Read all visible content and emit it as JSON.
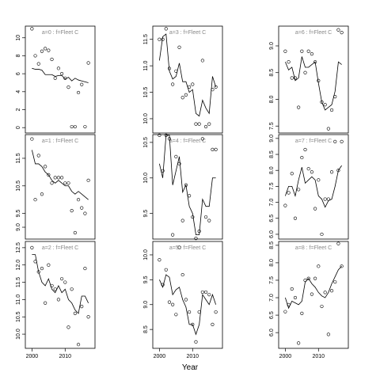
{
  "xlabel": "Year",
  "chart_data": [
    {
      "type": "scatter",
      "title": "a=0 : f=Fleet C",
      "x": [
        2000,
        2001,
        2002,
        2003,
        2004,
        2005,
        2006,
        2007,
        2008,
        2009,
        2010,
        2011,
        2012,
        2013,
        2014,
        2015,
        2016,
        2017
      ],
      "xlim": [
        1998,
        2019
      ],
      "ylim": [
        -0.6,
        11.3
      ],
      "yticks": [
        0,
        2,
        4,
        6,
        8,
        10
      ],
      "series": [
        {
          "style": "points",
          "values": [
            11.0,
            8.0,
            7.1,
            8.5,
            8.8,
            8.6,
            7.6,
            5.5,
            6.6,
            6.0,
            5.5,
            4.5,
            0.1,
            0.1,
            3.9,
            4.8,
            0.1,
            7.2
          ]
        },
        {
          "style": "line",
          "values": [
            6.6,
            6.5,
            6.5,
            6.4,
            5.9,
            5.9,
            5.9,
            5.7,
            5.8,
            5.8,
            5.4,
            5.6,
            5.2,
            5.5,
            5.3,
            5.2,
            5.1,
            5.0
          ]
        }
      ]
    },
    {
      "type": "scatter",
      "title": "a=1 : f=Fleet C",
      "x": [
        2000,
        2001,
        2002,
        2003,
        2004,
        2005,
        2006,
        2007,
        2008,
        2009,
        2010,
        2011,
        2012,
        2013,
        2014,
        2015,
        2016,
        2017
      ],
      "xlim": [
        1998,
        2019
      ],
      "ylim": [
        8.57,
        12.36
      ],
      "yticks": [
        {
          "value": 9,
          "label": "9.0"
        },
        9.5,
        10.5,
        11.5
      ],
      "series": [
        {
          "style": "points",
          "values": [
            12.2,
            10.0,
            11.6,
            10.2,
            11.2,
            10.9,
            10.6,
            10.8,
            10.8,
            10.8,
            10.6,
            10.6,
            9.6,
            8.8,
            10.0,
            9.7,
            9.5,
            10.7
          ]
        },
        {
          "style": "line",
          "values": [
            11.8,
            11.3,
            11.3,
            11.2,
            11.0,
            10.9,
            10.7,
            10.6,
            10.7,
            10.6,
            10.5,
            10.5,
            10.3,
            10.2,
            10.3,
            10.2,
            10.1,
            10.0
          ]
        }
      ]
    },
    {
      "type": "scatter",
      "title": "a=2 : f=Fleet C",
      "x": [
        2000,
        2001,
        2002,
        2003,
        2004,
        2005,
        2006,
        2007,
        2008,
        2009,
        2010,
        2011,
        2012,
        2013,
        2014,
        2015,
        2016,
        2017
      ],
      "xlim": [
        1998,
        2019
      ],
      "xticks": [
        2000,
        2010
      ],
      "ylim": [
        9.59,
        12.68
      ],
      "yticks": [
        {
          "value": 10,
          "label": "10.0"
        },
        10.5,
        {
          "value": 11,
          "label": "11.0"
        },
        11.5,
        {
          "value": 12,
          "label": "12.0"
        },
        12.5
      ],
      "series": [
        {
          "style": "points",
          "values": [
            12.5,
            12.1,
            11.8,
            11.9,
            10.9,
            12.0,
            11.4,
            11.3,
            11.0,
            11.6,
            11.5,
            10.2,
            11.3,
            10.6,
            9.7,
            10.8,
            11.9,
            10.5
          ]
        },
        {
          "style": "line",
          "values": [
            12.3,
            12.3,
            11.8,
            11.5,
            11.4,
            11.6,
            11.3,
            11.2,
            11.4,
            11.2,
            11.3,
            11.0,
            10.9,
            10.7,
            10.6,
            11.1,
            11.1,
            10.9
          ]
        }
      ]
    },
    {
      "type": "scatter",
      "title": "a=3 : f=Fleet C",
      "x": [
        2000,
        2001,
        2002,
        2003,
        2004,
        2005,
        2006,
        2007,
        2008,
        2009,
        2010,
        2011,
        2012,
        2013,
        2014,
        2015,
        2016,
        2017
      ],
      "xlim": [
        1998,
        2019
      ],
      "ylim": [
        9.73,
        11.75
      ],
      "yticks": [
        {
          "value": 10,
          "label": "10.0"
        },
        10.5,
        {
          "value": 11,
          "label": "11.0"
        },
        11.5
      ],
      "series": [
        {
          "style": "points",
          "values": [
            11.5,
            11.5,
            11.7,
            10.95,
            10.65,
            10.9,
            11.35,
            10.4,
            10.45,
            10.6,
            10.65,
            9.9,
            9.9,
            11.1,
            9.85,
            9.9,
            10.55,
            10.6
          ]
        },
        {
          "style": "line",
          "values": [
            11.1,
            11.55,
            11.6,
            10.9,
            10.75,
            10.8,
            11.05,
            10.7,
            10.7,
            10.5,
            10.55,
            10.1,
            10.05,
            10.35,
            10.2,
            10.1,
            10.8,
            10.6
          ]
        }
      ]
    },
    {
      "type": "scatter",
      "title": "a=4 : f=Fleet C",
      "x": [
        2000,
        2001,
        2002,
        2003,
        2004,
        2005,
        2006,
        2007,
        2008,
        2009,
        2010,
        2011,
        2012,
        2013,
        2014,
        2015,
        2016,
        2017
      ],
      "xlim": [
        1998,
        2019
      ],
      "ylim": [
        9.14,
        10.61
      ],
      "yticks": [
        9.5,
        {
          "value": 10,
          "label": "10.0"
        },
        10.5
      ],
      "series": [
        {
          "style": "points",
          "values": [
            10.6,
            10.1,
            10.6,
            10.55,
            9.2,
            10.3,
            10.2,
            9.4,
            9.9,
            9.75,
            9.45,
            9.15,
            9.25,
            10.55,
            9.45,
            9.4,
            10.4,
            10.4
          ]
        },
        {
          "style": "line",
          "values": [
            10.2,
            10.0,
            10.6,
            10.6,
            9.9,
            10.1,
            10.3,
            9.8,
            9.9,
            9.6,
            9.5,
            9.2,
            9.2,
            9.7,
            9.6,
            9.6,
            10.0,
            10.0
          ]
        }
      ]
    },
    {
      "type": "scatter",
      "title": "a=5 : f=Fleet C",
      "x": [
        2000,
        2001,
        2002,
        2003,
        2004,
        2005,
        2006,
        2007,
        2008,
        2009,
        2010,
        2011,
        2012,
        2013,
        2014,
        2015,
        2016,
        2017
      ],
      "xlim": [
        1998,
        2019
      ],
      "xticks": [
        2000,
        2010
      ],
      "ylim": [
        8.12,
        10.27
      ],
      "yticks": [
        8.5,
        {
          "value": 9,
          "label": "9.0"
        },
        9.5,
        {
          "value": 10,
          "label": "10.0"
        }
      ],
      "series": [
        {
          "style": "points",
          "values": [
            9.9,
            9.4,
            9.7,
            9.05,
            9.0,
            8.8,
            10.15,
            9.6,
            9.1,
            8.85,
            8.6,
            8.25,
            8.85,
            9.25,
            9.25,
            9.2,
            8.6,
            8.85
          ]
        },
        {
          "style": "line",
          "values": [
            9.5,
            9.35,
            9.6,
            9.55,
            9.2,
            9.3,
            9.35,
            9.1,
            8.95,
            8.6,
            8.6,
            8.4,
            8.6,
            9.2,
            9.1,
            9.0,
            9.2,
            9.0
          ]
        }
      ]
    },
    {
      "type": "scatter",
      "title": "a=6 : f=Fleet C",
      "x": [
        2000,
        2001,
        2002,
        2003,
        2004,
        2005,
        2006,
        2007,
        2008,
        2009,
        2010,
        2011,
        2012,
        2013,
        2014,
        2015,
        2016,
        2017
      ],
      "xlim": [
        1998,
        2019
      ],
      "ylim": [
        7.37,
        9.37
      ],
      "yticks": [
        7.5,
        {
          "value": 8,
          "label": "8.0"
        },
        8.5,
        {
          "value": 9,
          "label": "9.0"
        }
      ],
      "series": [
        {
          "style": "points",
          "values": [
            8.9,
            8.7,
            8.4,
            8.4,
            7.85,
            8.9,
            8.5,
            8.9,
            8.85,
            8.7,
            8.35,
            7.95,
            7.9,
            7.45,
            7.8,
            8.05,
            9.3,
            9.25
          ]
        },
        {
          "style": "line",
          "values": [
            8.7,
            8.55,
            8.6,
            8.35,
            8.4,
            8.8,
            8.6,
            8.6,
            8.65,
            8.7,
            8.3,
            7.95,
            7.8,
            7.85,
            7.9,
            8.15,
            8.7,
            8.65
          ]
        }
      ]
    },
    {
      "type": "scatter",
      "title": "a=7 : f=Fleet C",
      "x": [
        2000,
        2001,
        2002,
        2003,
        2004,
        2005,
        2006,
        2007,
        2008,
        2009,
        2010,
        2011,
        2012,
        2013,
        2014,
        2015,
        2016,
        2017
      ],
      "xlim": [
        1998,
        2019
      ],
      "ylim": [
        5.85,
        9.12
      ],
      "yticks": [
        {
          "value": 6,
          "label": "6.0"
        },
        6.5,
        {
          "value": 7,
          "label": "7.0"
        },
        7.5,
        {
          "value": 8,
          "label": "8.0"
        },
        8.5,
        {
          "value": 9,
          "label": "9.0"
        }
      ],
      "series": [
        {
          "style": "points",
          "values": [
            6.9,
            7.3,
            7.9,
            6.5,
            7.4,
            8.4,
            8.65,
            8.05,
            7.95,
            6.8,
            7.7,
            6.0,
            7.1,
            7.1,
            7.95,
            8.9,
            8.0,
            8.9
          ]
        },
        {
          "style": "line",
          "values": [
            7.2,
            7.5,
            7.5,
            7.2,
            7.7,
            8.1,
            7.6,
            7.7,
            7.8,
            7.7,
            7.2,
            7.1,
            6.85,
            7.05,
            7.1,
            7.5,
            8.0,
            8.15
          ]
        }
      ]
    },
    {
      "type": "scatter",
      "title": "a=8 : f=Fleet C",
      "x": [
        2000,
        2001,
        2002,
        2003,
        2004,
        2005,
        2006,
        2007,
        2008,
        2009,
        2010,
        2011,
        2012,
        2013,
        2014,
        2015,
        2016,
        2017
      ],
      "xlim": [
        1998,
        2019
      ],
      "xticks": [
        2000,
        2010
      ],
      "ylim": [
        5.55,
        8.61
      ],
      "yticks": [
        {
          "value": 6,
          "label": "6.0"
        },
        6.5,
        {
          "value": 7,
          "label": "7.0"
        },
        7.5,
        {
          "value": 8,
          "label": "8.0"
        },
        8.5
      ],
      "series": [
        {
          "style": "points",
          "values": [
            6.6,
            6.8,
            7.25,
            7.0,
            5.7,
            6.55,
            7.5,
            7.55,
            7.1,
            7.55,
            7.9,
            6.75,
            7.15,
            5.95,
            7.2,
            7.45,
            8.55,
            7.9
          ]
        },
        {
          "style": "line",
          "values": [
            7.0,
            6.7,
            6.9,
            6.85,
            6.8,
            6.9,
            7.45,
            7.55,
            7.4,
            7.3,
            7.15,
            7.05,
            7.0,
            7.15,
            7.4,
            7.6,
            7.8,
            7.9
          ]
        }
      ]
    }
  ]
}
